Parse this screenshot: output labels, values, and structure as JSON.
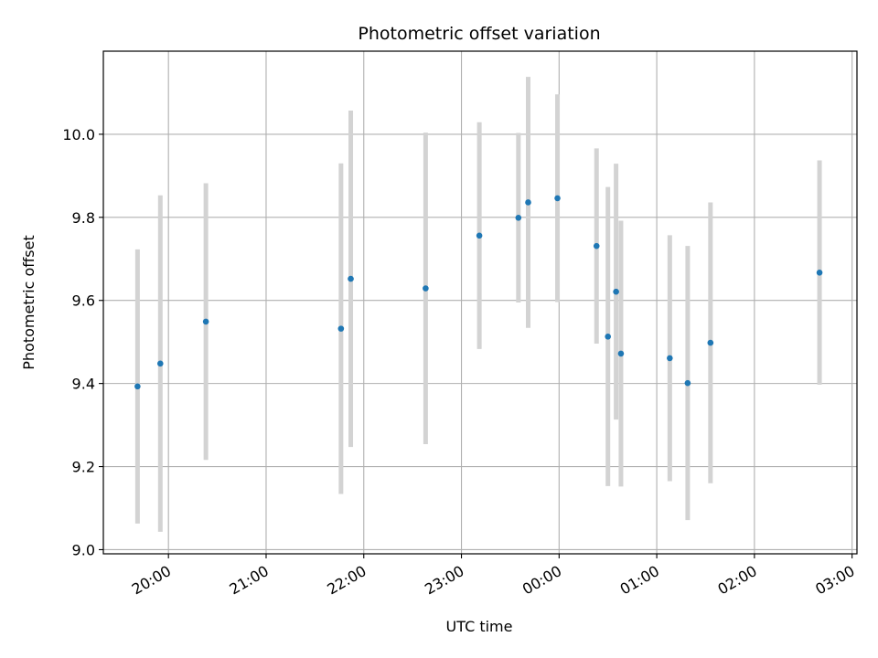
{
  "chart_data": {
    "type": "scatter",
    "title": "Photometric offset variation",
    "xlabel": "UTC time",
    "ylabel": "Photometric offset",
    "x_tick_labels": [
      "20:00",
      "21:00",
      "22:00",
      "23:00",
      "00:00",
      "01:00",
      "02:00",
      "03:00"
    ],
    "y_tick_labels": [
      "9.0",
      "9.2",
      "9.4",
      "9.6",
      "9.8",
      "10.0"
    ],
    "y_ticks": [
      9.0,
      9.2,
      9.4,
      9.6,
      9.8,
      10.0
    ],
    "ylim": [
      8.99,
      10.2
    ],
    "xlim": [
      "19:20",
      "03:03"
    ],
    "grid": true,
    "colors": {
      "point": "#1f77b4",
      "errorbar": "#d3d3d3",
      "grid": "#b0b0b0"
    },
    "points": [
      {
        "x": "19:41",
        "y": 9.393,
        "yerr": 0.33
      },
      {
        "x": "19:55",
        "y": 9.448,
        "yerr": 0.405
      },
      {
        "x": "20:23",
        "y": 9.549,
        "yerr": 0.333
      },
      {
        "x": "21:46",
        "y": 9.532,
        "yerr": 0.398
      },
      {
        "x": "21:52",
        "y": 9.652,
        "yerr": 0.405
      },
      {
        "x": "22:38",
        "y": 9.629,
        "yerr": 0.375
      },
      {
        "x": "23:11",
        "y": 9.756,
        "yerr": 0.273
      },
      {
        "x": "23:35",
        "y": 9.799,
        "yerr": 0.204
      },
      {
        "x": "23:41",
        "y": 9.836,
        "yerr": 0.302
      },
      {
        "x": "23:59",
        "y": 9.846,
        "yerr": 0.25
      },
      {
        "x": "00:23",
        "y": 9.731,
        "yerr": 0.235
      },
      {
        "x": "00:30",
        "y": 9.513,
        "yerr": 0.36
      },
      {
        "x": "00:35",
        "y": 9.621,
        "yerr": 0.308
      },
      {
        "x": "00:38",
        "y": 9.472,
        "yerr": 0.32
      },
      {
        "x": "01:08",
        "y": 9.461,
        "yerr": 0.296
      },
      {
        "x": "01:19",
        "y": 9.401,
        "yerr": 0.33
      },
      {
        "x": "01:33",
        "y": 9.498,
        "yerr": 0.338
      },
      {
        "x": "02:40",
        "y": 9.667,
        "yerr": 0.27
      }
    ]
  }
}
